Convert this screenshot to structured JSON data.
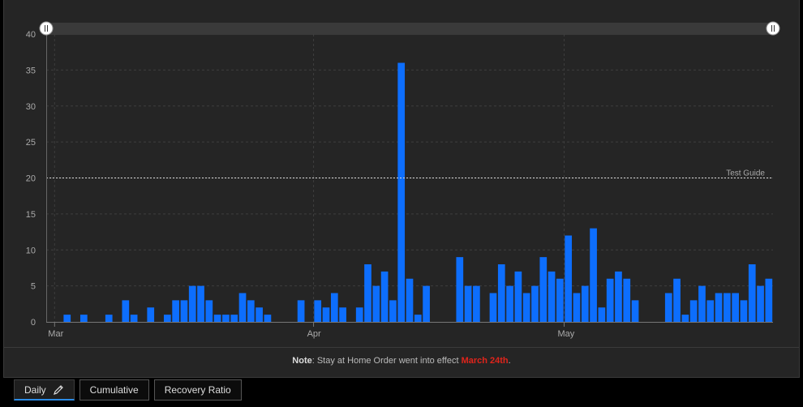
{
  "chart_data": {
    "type": "bar",
    "title": "",
    "xlabel": "",
    "ylabel": "",
    "ylim": [
      0,
      40
    ],
    "yticks": [
      0,
      5,
      10,
      15,
      20,
      25,
      30,
      35,
      40
    ],
    "x_start": "Feb 29",
    "month_labels": [
      {
        "label": "Mar",
        "day_index": 1
      },
      {
        "label": "Apr",
        "day_index": 32
      },
      {
        "label": "May",
        "day_index": 62
      }
    ],
    "values": [
      0,
      0,
      1,
      0,
      1,
      0,
      0,
      1,
      0,
      3,
      1,
      0,
      2,
      0,
      1,
      3,
      3,
      5,
      5,
      3,
      1,
      1,
      1,
      4,
      3,
      2,
      1,
      0,
      0,
      0,
      3,
      0,
      3,
      2,
      4,
      2,
      0,
      2,
      8,
      5,
      7,
      3,
      36,
      6,
      1,
      5,
      0,
      0,
      0,
      9,
      5,
      5,
      0,
      4,
      8,
      5,
      7,
      4,
      5,
      9,
      7,
      6,
      12,
      4,
      5,
      13,
      2,
      6,
      7,
      6,
      3,
      0,
      0,
      0,
      4,
      6,
      1,
      3,
      5,
      3,
      4,
      4,
      4,
      3,
      8,
      5,
      6
    ],
    "guide": {
      "value": 20,
      "label": "Test Guide"
    },
    "grid": true,
    "bar_color": "#0d6efd"
  },
  "note": {
    "prefix": "Note",
    "text": ": Stay at Home Order went into effect ",
    "date": "March 24th",
    "suffix": "."
  },
  "tabs": [
    {
      "label": "Daily",
      "active": true
    },
    {
      "label": "Cumulative",
      "active": false
    },
    {
      "label": "Recovery Ratio",
      "active": false
    }
  ],
  "colors": {
    "accent": "#2b8be6",
    "bar": "#0d6efd",
    "note_date": "#e0241b"
  }
}
